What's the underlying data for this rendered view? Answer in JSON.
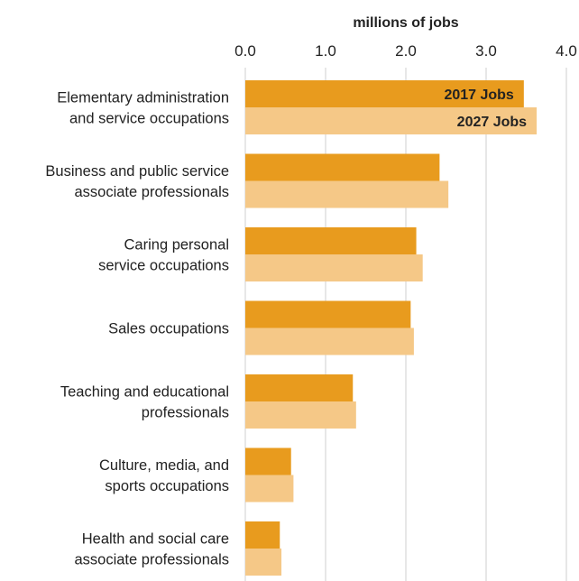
{
  "chart_data": {
    "type": "bar",
    "orientation": "horizontal",
    "xlabel": "millions of jobs",
    "xlim": [
      0,
      4
    ],
    "xticks": [
      "0.0",
      "1.0",
      "2.0",
      "3.0",
      "4.0"
    ],
    "grid": true,
    "categories": [
      [
        "Elementary administration",
        "and service occupations"
      ],
      [
        "Business and public service",
        "associate professionals"
      ],
      [
        "Caring personal",
        "service occupations"
      ],
      [
        "Sales occupations"
      ],
      [
        "Teaching and educational",
        "professionals"
      ],
      [
        "Culture, media, and",
        "sports occupations"
      ],
      [
        "Health and social care",
        "associate professionals"
      ]
    ],
    "series": [
      {
        "name": "2017 Jobs",
        "color": "#E89B1E",
        "values": [
          3.47,
          2.42,
          2.13,
          2.06,
          1.34,
          0.57,
          0.43
        ]
      },
      {
        "name": "2027 Jobs",
        "color": "#F5C887",
        "values": [
          3.63,
          2.53,
          2.21,
          2.1,
          1.38,
          0.6,
          0.45
        ]
      }
    ]
  }
}
